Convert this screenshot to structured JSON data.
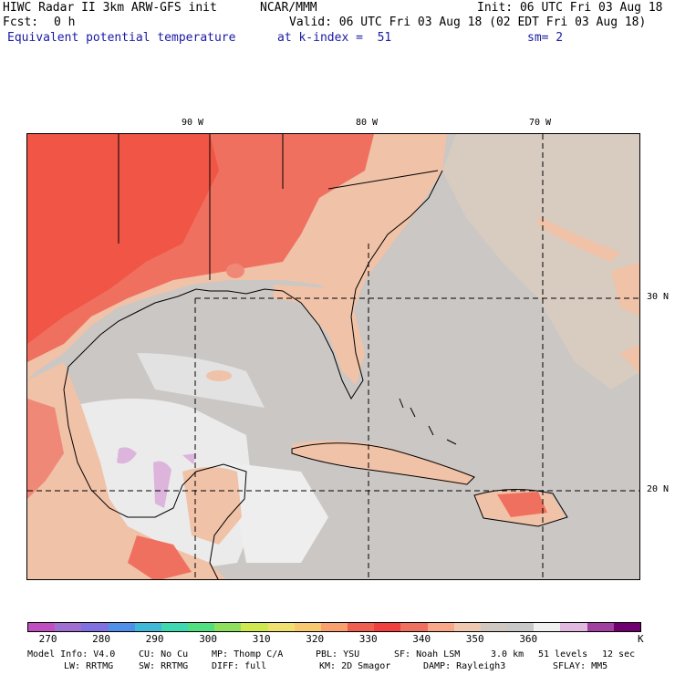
{
  "header": {
    "title_left": "HIWC Radar II 3km ARW-GFS init",
    "org": "NCAR/MMM",
    "init": "Init: 06 UTC Fri 03 Aug 18",
    "fcst_label": "Fcst:",
    "fcst_value": "0 h",
    "valid": "Valid: 06 UTC Fri 03 Aug 18 (02 EDT Fri 03 Aug 18)",
    "field": "Equivalent potential temperature",
    "level": "at k-index =  51",
    "smooth": "sm= 2"
  },
  "map": {
    "lon_ticks": [
      "90 W",
      "80 W",
      "70 W"
    ],
    "lat_ticks": [
      "30 N",
      "20 N"
    ]
  },
  "colorbar": {
    "colors": [
      "#c050c0",
      "#a070d0",
      "#8070e0",
      "#5090e8",
      "#40b8d8",
      "#40d8b0",
      "#50e080",
      "#90e060",
      "#d0e850",
      "#f0e070",
      "#f8c870",
      "#f8a070",
      "#f06050",
      "#f04040",
      "#f07060",
      "#f8a888",
      "#f0c8b0",
      "#d0c8c0",
      "#c8c8c8",
      "#f0f0f0",
      "#e0b8e0",
      "#a040a0",
      "#700070"
    ],
    "labels": [
      "270",
      "280",
      "290",
      "300",
      "310",
      "320",
      "330",
      "340",
      "350",
      "360",
      "K"
    ]
  },
  "footer": {
    "line1": [
      "Model Info: V4.0",
      "CU: No Cu",
      "MP: Thomp C/A",
      "PBL: YSU",
      "SF: Noah LSM",
      "3.0 km",
      "51 levels",
      "12 sec"
    ],
    "line2": [
      "LW: RRTMG",
      "SW: RRTMG",
      "DIFF: full",
      "KM: 2D Smagor",
      "DAMP: Rayleigh3",
      "SFLAY: MM5"
    ]
  }
}
